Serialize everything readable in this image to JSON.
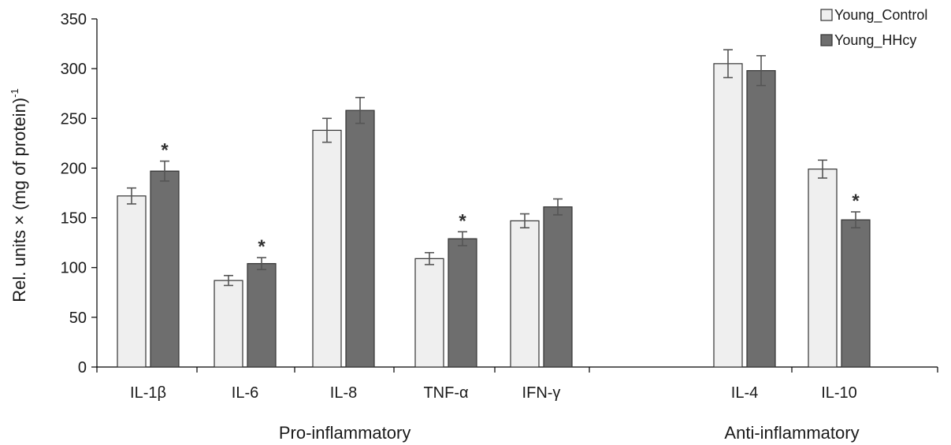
{
  "chart_data": {
    "type": "bar",
    "categories": [
      "IL-1β",
      "IL-6",
      "IL-8",
      "TNF-α",
      "IFN-γ",
      "IL-4",
      "IL-10"
    ],
    "groups": [
      {
        "label": "Pro-inflammatory",
        "categories": [
          "IL-1β",
          "IL-6",
          "IL-8",
          "TNF-α",
          "IFN-γ"
        ]
      },
      {
        "label": "Anti-inflammatory",
        "categories": [
          "IL-4",
          "IL-10"
        ]
      }
    ],
    "series": [
      {
        "name": "Young_Control",
        "color": "#efefef",
        "values": [
          172,
          87,
          238,
          109,
          147,
          305,
          199
        ],
        "errors": [
          8,
          5,
          12,
          6,
          7,
          14,
          9
        ]
      },
      {
        "name": "Young_HHcy",
        "color": "#6e6e6e",
        "values": [
          197,
          104,
          258,
          129,
          161,
          298,
          148
        ],
        "errors": [
          10,
          6,
          13,
          7,
          8,
          15,
          8
        ],
        "significant": [
          true,
          true,
          false,
          true,
          false,
          false,
          true
        ]
      }
    ],
    "significance_marker": "*",
    "ylabel": "Rel. units × (mg of protein)",
    "ylabel_superscript": "-1",
    "ylim": [
      0,
      350
    ],
    "yticks": [
      0,
      50,
      100,
      150,
      200,
      250,
      300,
      350
    ],
    "grid": false,
    "legend_position": "top-right"
  }
}
